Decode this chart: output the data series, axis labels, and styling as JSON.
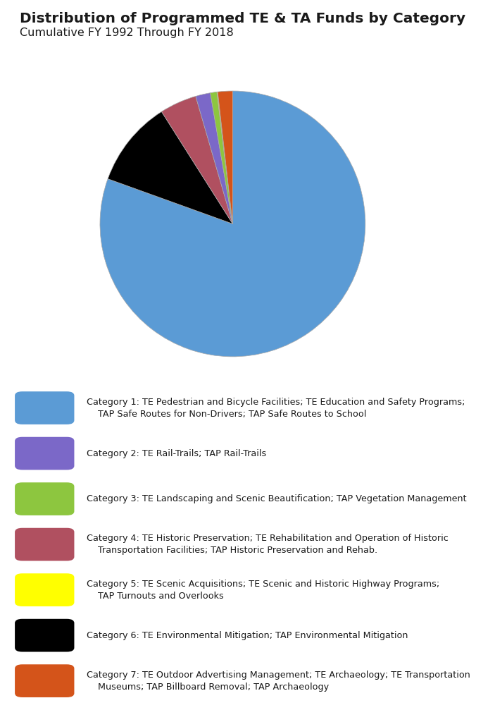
{
  "title": "Distribution of Programmed TE & TA Funds by Category",
  "subtitle": "Cumulative FY 1992 Through FY 2018",
  "slices": [
    80.5,
    10.5,
    4.5,
    1.8,
    0.8,
    0.1,
    1.8
  ],
  "colors": [
    "#5b9bd5",
    "#000000",
    "#b05060",
    "#7b68c8",
    "#8dc63f",
    "#ffff00",
    "#d4541a"
  ],
  "legend_colors": [
    "#5b9bd5",
    "#7b68c8",
    "#8dc63f",
    "#b05060",
    "#ffff00",
    "#000000",
    "#d4541a"
  ],
  "legend_labels": [
    "Category 1: TE Pedestrian and Bicycle Facilities; TE Education and Safety Programs;\n    TAP Safe Routes for Non-Drivers; TAP Safe Routes to School",
    "Category 2: TE Rail-Trails; TAP Rail-Trails",
    "Category 3: TE Landscaping and Scenic Beautification; TAP Vegetation Management",
    "Category 4: TE Historic Preservation; TE Rehabilitation and Operation of Historic\n    Transportation Facilities; TAP Historic Preservation and Rehab.",
    "Category 5: TE Scenic Acquisitions; TE Scenic and Historic Highway Programs;\n    TAP Turnouts and Overlooks",
    "Category 6: TE Environmental Mitigation; TAP Environmental Mitigation",
    "Category 7: TE Outdoor Advertising Management; TE Archaeology; TE Transportation\n    Museums; TAP Billboard Removal; TAP Archaeology"
  ],
  "background_color": "#ffffff",
  "figsize": [
    7.03,
    10.24
  ],
  "dpi": 100
}
